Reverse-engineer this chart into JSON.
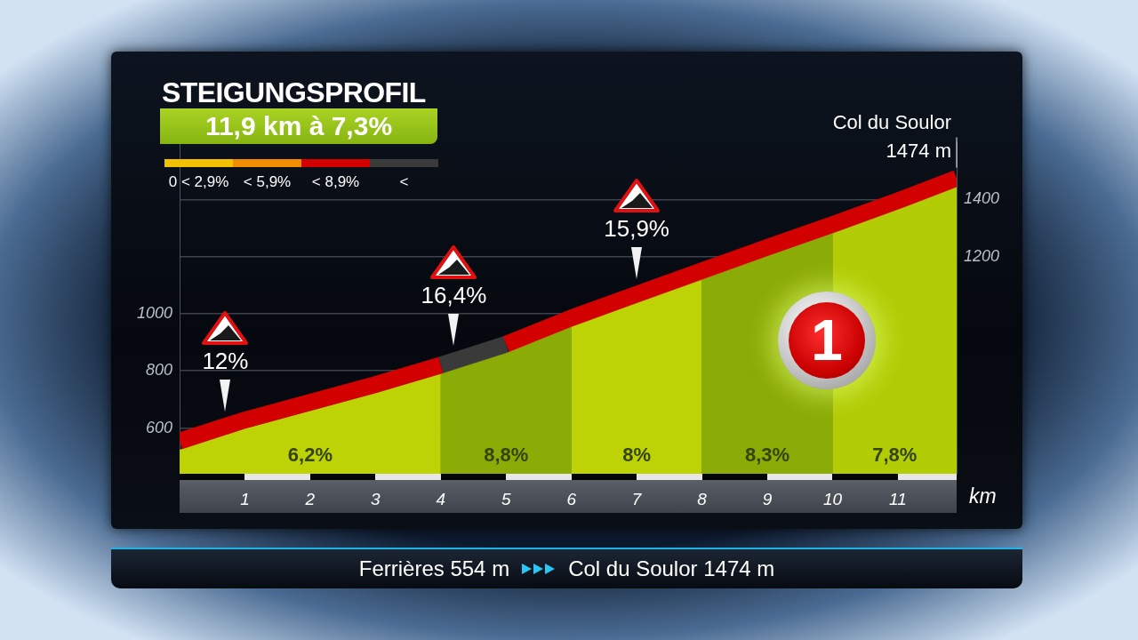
{
  "chart_data": {
    "type": "area",
    "title": "STEIGUNGSPROFIL",
    "subtitle": "11,9 km à 7,3%",
    "xlabel": "km",
    "x": [
      0,
      1,
      2,
      3,
      4,
      5,
      6,
      7,
      8,
      9,
      10,
      11,
      11.9
    ],
    "series": [
      {
        "color": "#a8c60c",
        "values": [
          524,
          598,
          660,
          722,
          790,
          863,
          955,
          1038,
          1120,
          1202,
          1282,
          1365,
          1444
        ]
      },
      {
        "type": "line",
        "name": "0 < 2,9%",
        "color": "#f2c200",
        "values": [
          null,
          null,
          null,
          null,
          null,
          null,
          null,
          null,
          null,
          null,
          null,
          null,
          null
        ]
      },
      {
        "type": "line",
        "name": "< 5,9%",
        "color": "#f08c00",
        "values": [
          null,
          null,
          null,
          null,
          null,
          null,
          null,
          null,
          null,
          null,
          null,
          null,
          null
        ]
      },
      {
        "type": "line",
        "name": "< 8,9%",
        "color": "#d30000",
        "x": [
          0,
          1,
          2,
          3,
          4,
          4.5,
          5,
          6,
          7,
          8,
          9,
          10,
          11,
          11.9
        ],
        "values": [
          554,
          628,
          690,
          752,
          820,
          null,
          893,
          985,
          1068,
          1150,
          1232,
          1312,
          1395,
          1474
        ]
      },
      {
        "type": "line",
        "name": "<",
        "color": "#3a3a3a",
        "x": [
          4,
          5
        ],
        "values": [
          820,
          893
        ]
      }
    ],
    "xlim": [
      0,
      11.9
    ],
    "xticks": [
      1,
      2,
      3,
      4,
      5,
      6,
      7,
      8,
      9,
      10,
      11
    ],
    "ylim": [
      440,
      1600
    ],
    "yticks": [
      600,
      800,
      1000,
      {
        "value": 1200,
        "label": null
      },
      {
        "value": 1400,
        "label": null
      }
    ],
    "y2lim": [
      440,
      1600
    ],
    "y2ticks": [
      1200,
      1400
    ],
    "bands": [
      {
        "axis": "x",
        "from": 0,
        "to": 4,
        "label": "6,2%",
        "color": "#d4e000"
      },
      {
        "axis": "x",
        "from": 4,
        "to": 6,
        "label": "8,8%",
        "color": "#6f9000"
      },
      {
        "axis": "x",
        "from": 6,
        "to": 8,
        "label": "8%",
        "color": "#d4e000"
      },
      {
        "axis": "x",
        "from": 8,
        "to": 10,
        "label": "8,3%",
        "color": "#6f9000"
      },
      {
        "axis": "x",
        "from": 10,
        "to": 11.9,
        "label": "7,8%",
        "color": "#bcd200"
      }
    ],
    "annotations": [
      {
        "text": "12%",
        "x": 0.7,
        "y": 606
      },
      {
        "text": "16,4%",
        "x": 4.2,
        "y": 835
      },
      {
        "text": "15,9%",
        "x": 7,
        "y": 1068
      },
      {
        "text": "Col du Soulor 1474 m",
        "x": 11.9,
        "y": 1474
      },
      "1",
      "Ferrières 554 m",
      "Col du Soulor 1474 m"
    ],
    "grid": "y",
    "legend": "top left"
  }
}
